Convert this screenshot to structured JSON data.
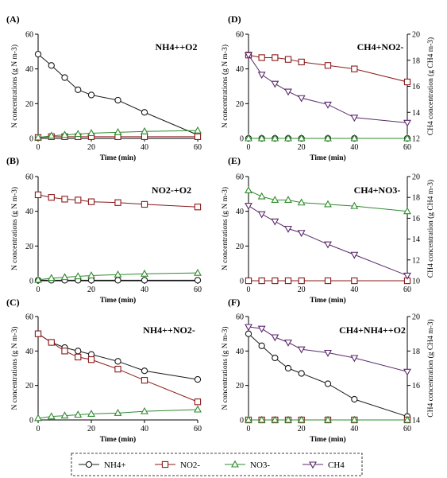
{
  "colors": {
    "NH4": "#1a1a1a",
    "NO2": "#8b1a1a",
    "NO3": "#2e8b2e",
    "CH4": "#5a2a6a"
  },
  "legend": {
    "items": [
      {
        "key": "NH4",
        "label": "NH4+",
        "marker": "circle"
      },
      {
        "key": "NO2",
        "label": "NO2-",
        "marker": "square"
      },
      {
        "key": "NO3",
        "label": "NO3-",
        "marker": "triangle"
      },
      {
        "key": "CH4",
        "label": "CH4",
        "marker": "triangle-down"
      }
    ],
    "placement": "bottom-center"
  },
  "chart_data": [
    {
      "type": "line",
      "panel": "(A)",
      "title": "NH4++O2",
      "xlabel": "Time (min)",
      "ylabel": "N concentrations (g N m-3)",
      "xlim": [
        0,
        60
      ],
      "ylim": [
        0,
        60
      ],
      "xticks": [
        0,
        20,
        40,
        60
      ],
      "yticks": [
        0,
        20,
        40,
        60
      ],
      "series": [
        {
          "key": "NH4",
          "x": [
            0,
            5,
            10,
            15,
            20,
            30,
            40,
            60
          ],
          "y": [
            48.5,
            42,
            35,
            28,
            25,
            22,
            15,
            2
          ]
        },
        {
          "key": "NO2",
          "x": [
            0,
            5,
            10,
            15,
            20,
            30,
            40,
            60
          ],
          "y": [
            0.5,
            1,
            1,
            1,
            1,
            1,
            1,
            1
          ]
        },
        {
          "key": "NO3",
          "x": [
            0,
            5,
            10,
            15,
            20,
            30,
            40,
            60
          ],
          "y": [
            0.5,
            1.5,
            2,
            2.5,
            3,
            3.5,
            4,
            4.5
          ]
        }
      ]
    },
    {
      "type": "line",
      "panel": "(B)",
      "title": "NO2-+O2",
      "xlabel": "Time (min)",
      "ylabel": "N concentrations (g N m-3)",
      "xlim": [
        0,
        60
      ],
      "ylim": [
        0,
        60
      ],
      "xticks": [
        0,
        20,
        40,
        60
      ],
      "yticks": [
        0,
        20,
        40,
        60
      ],
      "series": [
        {
          "key": "NO2",
          "x": [
            0,
            5,
            10,
            15,
            20,
            30,
            40,
            60
          ],
          "y": [
            49.5,
            48,
            47,
            46.5,
            45.5,
            45,
            44,
            42.5
          ]
        },
        {
          "key": "NH4",
          "x": [
            0,
            5,
            10,
            15,
            20,
            30,
            40,
            60
          ],
          "y": [
            0.3,
            0.3,
            0.3,
            0.3,
            0.3,
            0.3,
            0.3,
            0.3
          ]
        },
        {
          "key": "NO3",
          "x": [
            0,
            5,
            10,
            15,
            20,
            30,
            40,
            60
          ],
          "y": [
            0.5,
            1.5,
            2,
            2.5,
            3,
            3.5,
            4,
            4.5
          ]
        }
      ]
    },
    {
      "type": "line",
      "panel": "(C)",
      "title": "NH4++NO2-",
      "xlabel": "Time (min)",
      "ylabel": "N concentrations (g N m-3)",
      "xlim": [
        0,
        60
      ],
      "ylim": [
        0,
        60
      ],
      "xticks": [
        0,
        20,
        40,
        60
      ],
      "yticks": [
        0,
        20,
        40,
        60
      ],
      "series": [
        {
          "key": "NH4",
          "x": [
            0,
            5,
            10,
            15,
            20,
            30,
            40,
            60
          ],
          "y": [
            50,
            45,
            42,
            40,
            38,
            34,
            28.5,
            23.5
          ]
        },
        {
          "key": "NO2",
          "x": [
            0,
            5,
            10,
            15,
            20,
            30,
            40,
            60
          ],
          "y": [
            50,
            45,
            40,
            36.5,
            35,
            29.5,
            23,
            10.5
          ]
        },
        {
          "key": "NO3",
          "x": [
            0,
            5,
            10,
            15,
            20,
            30,
            40,
            60
          ],
          "y": [
            1,
            2,
            2.5,
            3,
            3.5,
            4,
            5,
            6
          ]
        }
      ]
    },
    {
      "type": "line",
      "panel": "(D)",
      "title": "CH4+NO2-",
      "xlabel": "Time (min)",
      "ylabel": "N concentrations (g N m-3)",
      "y2label": "CH4 concentration (g CH4 m-3)",
      "xlim": [
        0,
        60
      ],
      "ylim": [
        0,
        60
      ],
      "y2lim": [
        12,
        20
      ],
      "xticks": [
        0,
        20,
        40,
        60
      ],
      "yticks": [
        0,
        20,
        40,
        60
      ],
      "y2ticks": [
        12,
        14,
        16,
        18,
        20
      ],
      "series": [
        {
          "key": "NO2",
          "axis": "left",
          "x": [
            0,
            5,
            10,
            15,
            20,
            30,
            40,
            60
          ],
          "y": [
            48,
            46.5,
            46.5,
            45.5,
            44,
            42,
            40,
            32.5
          ]
        },
        {
          "key": "NH4",
          "axis": "left",
          "x": [
            0,
            5,
            10,
            15,
            20,
            30,
            40,
            60
          ],
          "y": [
            0,
            0,
            0,
            0,
            0,
            0,
            0,
            0
          ]
        },
        {
          "key": "NO3",
          "axis": "left",
          "x": [
            0,
            5,
            10,
            15,
            20,
            30,
            40,
            60
          ],
          "y": [
            0,
            0,
            0,
            0,
            0,
            0,
            0,
            0
          ]
        },
        {
          "key": "CH4",
          "axis": "right",
          "x": [
            0,
            5,
            10,
            15,
            20,
            30,
            40,
            60
          ],
          "y": [
            18.4,
            16.9,
            16.2,
            15.6,
            15.1,
            14.6,
            13.6,
            13.2
          ]
        }
      ]
    },
    {
      "type": "line",
      "panel": "(E)",
      "title": "CH4+NO3-",
      "xlabel": "Time (min)",
      "ylabel": "N concentrations (g N m-3)",
      "y2label": "CH4 concentration (g CH4 m-3)",
      "xlim": [
        0,
        60
      ],
      "ylim": [
        0,
        60
      ],
      "y2lim": [
        10,
        20
      ],
      "xticks": [
        0,
        20,
        40,
        60
      ],
      "yticks": [
        0,
        20,
        40,
        60
      ],
      "y2ticks": [
        10,
        12,
        14,
        16,
        18,
        20
      ],
      "series": [
        {
          "key": "NO3",
          "axis": "left",
          "x": [
            0,
            5,
            10,
            15,
            20,
            30,
            40,
            60
          ],
          "y": [
            52,
            48.5,
            46.5,
            46.5,
            45,
            44,
            43,
            40
          ]
        },
        {
          "key": "NH4",
          "axis": "left",
          "x": [
            0,
            5,
            10,
            15,
            20,
            30,
            40,
            60
          ],
          "y": [
            0,
            0,
            0,
            0,
            0,
            0,
            0,
            0
          ]
        },
        {
          "key": "NO2",
          "axis": "left",
          "x": [
            0,
            5,
            10,
            15,
            20,
            30,
            40,
            60
          ],
          "y": [
            0,
            0,
            0,
            0,
            0,
            0,
            0,
            0
          ]
        },
        {
          "key": "CH4",
          "axis": "right",
          "x": [
            0,
            5,
            10,
            15,
            20,
            30,
            40,
            60
          ],
          "y": [
            17.2,
            16.4,
            15.7,
            15.0,
            14.6,
            13.5,
            12.5,
            10.5
          ]
        }
      ]
    },
    {
      "type": "line",
      "panel": "(F)",
      "title": "CH4+NH4++O2",
      "xlabel": "Time (min)",
      "ylabel": "N concentrations (g N m-3)",
      "y2label": "CH4 concentration (g CH4 m-3)",
      "xlim": [
        0,
        60
      ],
      "ylim": [
        0,
        60
      ],
      "y2lim": [
        14,
        20
      ],
      "xticks": [
        0,
        20,
        40,
        60
      ],
      "yticks": [
        0,
        20,
        40,
        60
      ],
      "y2ticks": [
        14,
        16,
        18,
        20
      ],
      "series": [
        {
          "key": "NH4",
          "axis": "left",
          "x": [
            0,
            5,
            10,
            15,
            20,
            30,
            40,
            60
          ],
          "y": [
            50,
            43,
            36,
            30,
            27,
            21,
            12,
            2
          ]
        },
        {
          "key": "NO2",
          "axis": "left",
          "x": [
            0,
            5,
            10,
            15,
            20,
            30,
            40,
            60
          ],
          "y": [
            0,
            0,
            0,
            0,
            0,
            0,
            0,
            0
          ]
        },
        {
          "key": "NO3",
          "axis": "left",
          "x": [
            0,
            5,
            10,
            15,
            20,
            30,
            40,
            60
          ],
          "y": [
            0,
            0,
            0,
            0,
            0,
            0,
            0,
            0
          ]
        },
        {
          "key": "CH4",
          "axis": "right",
          "x": [
            0,
            5,
            10,
            15,
            20,
            30,
            40,
            60
          ],
          "y": [
            19.4,
            19.3,
            18.8,
            18.5,
            18.1,
            17.9,
            17.6,
            16.8
          ]
        }
      ]
    }
  ]
}
